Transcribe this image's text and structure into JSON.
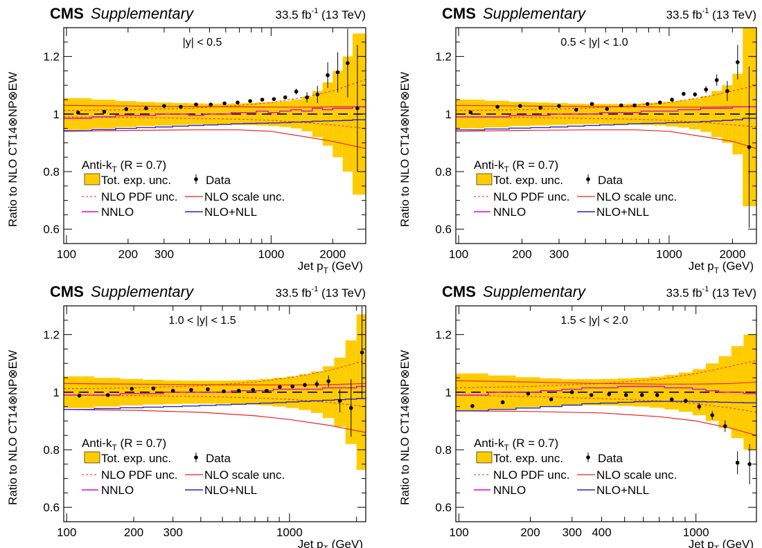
{
  "experiment": "CMS",
  "experiment_note": "Supplementary",
  "lumi_value": "33.5 fb",
  "lumi_exponent": "-1",
  "energy": "(13 TeV)",
  "y_axis_label": "Ratio to NLO CT14⊗NP⊗EW",
  "x_axis_label_main": "Jet p",
  "x_axis_label_sub": "T",
  "x_axis_unit": "(GeV)",
  "legend": {
    "title_main": "Anti-k",
    "title_sub": "T",
    "title_rest": " (R = 0.7)",
    "items": {
      "exp_unc": "Tot. exp. unc.",
      "data": "Data",
      "pdf_unc": "NLO PDF unc.",
      "scale_unc": "NLO scale unc.",
      "nnlo": "NNLO",
      "nlo_nll": "NLO+NLL"
    }
  },
  "colors": {
    "exp_band": "#ffcc00",
    "pdf": "#ee2222",
    "scale": "#ee2222",
    "nnlo": "#dd00dd",
    "nll": "#2222cc",
    "data": "#000000"
  },
  "chart_data": [
    {
      "type": "line",
      "region": "|y| < 0.5",
      "x_scale": "log",
      "xlim": [
        97,
        2900
      ],
      "ylim": [
        0.55,
        1.3
      ],
      "x_tick_labels": [
        "100",
        "200",
        "300",
        "1000",
        "2000"
      ],
      "y_tick_labels": [
        "0.6",
        "0.8",
        "1",
        "1.2"
      ],
      "data": {
        "x": [
          114,
          153,
          196,
          245,
          300,
          362,
          430,
          507,
          592,
          686,
          790,
          905,
          1032,
          1172,
          1327,
          1497,
          1684,
          1890,
          2116,
          2366,
          2640
        ],
        "y": [
          1.005,
          1.008,
          1.017,
          1.02,
          1.028,
          1.025,
          1.033,
          1.033,
          1.037,
          1.04,
          1.045,
          1.05,
          1.052,
          1.058,
          1.078,
          1.058,
          1.068,
          1.135,
          1.145,
          1.177,
          1.02
        ],
        "err": [
          0.002,
          0.002,
          0.002,
          0.002,
          0.002,
          0.002,
          0.002,
          0.002,
          0.002,
          0.002,
          0.003,
          0.004,
          0.005,
          0.006,
          0.01,
          0.018,
          0.03,
          0.045,
          0.07,
          0.12,
          0.22
        ]
      },
      "exp_unc": {
        "edges": [
          97,
          133,
          174,
          220,
          272,
          330,
          395,
          468,
          548,
          638,
          737,
          846,
          967,
          1101,
          1248,
          1410,
          1588,
          1784,
          2000,
          2238,
          2500,
          2900
        ],
        "half_width": [
          0.055,
          0.05,
          0.045,
          0.042,
          0.04,
          0.038,
          0.037,
          0.036,
          0.036,
          0.037,
          0.038,
          0.04,
          0.042,
          0.045,
          0.05,
          0.06,
          0.08,
          0.11,
          0.15,
          0.2,
          0.28
        ]
      },
      "pdf_unc": {
        "x": [
          97,
          200,
          400,
          700,
          1000,
          1500,
          2000,
          2900
        ],
        "up": [
          1.012,
          1.015,
          1.02,
          1.03,
          1.04,
          1.06,
          1.08,
          1.12
        ],
        "down": [
          0.99,
          0.988,
          0.985,
          0.982,
          0.978,
          0.97,
          0.962,
          0.95
        ]
      },
      "scale_unc": {
        "x": [
          97,
          200,
          400,
          700,
          1000,
          1500,
          2000,
          2900
        ],
        "up": [
          1.03,
          1.028,
          1.026,
          1.025,
          1.024,
          1.024,
          1.025,
          1.025
        ],
        "down": [
          0.94,
          0.943,
          0.945,
          0.945,
          0.94,
          0.92,
          0.905,
          0.88
        ]
      },
      "nnlo": [
        0.985,
        0.99,
        0.995,
        0.995,
        1.0,
        1.0,
        0.995,
        1.0,
        1.0,
        1.005,
        1.005,
        1.01,
        1.005,
        1.01,
        1.015,
        1.01,
        1.02,
        1.015,
        1.02,
        1.02,
        1.025
      ],
      "nlo_nll": [
        0.942,
        0.946,
        0.95,
        0.953,
        0.955,
        0.958,
        0.96,
        0.962,
        0.964,
        0.966,
        0.967,
        0.968,
        0.969,
        0.97,
        0.972,
        0.973,
        0.975,
        0.976,
        0.977,
        0.978,
        0.98
      ]
    },
    {
      "type": "line",
      "region": "0.5 < |y| < 1.0",
      "x_scale": "log",
      "xlim": [
        97,
        2600
      ],
      "ylim": [
        0.55,
        1.3
      ],
      "x_tick_labels": [
        "100",
        "200",
        "300",
        "1000",
        "2000"
      ],
      "y_tick_labels": [
        "0.6",
        "0.8",
        "1",
        "1.2"
      ],
      "data": {
        "x": [
          114,
          153,
          196,
          245,
          300,
          362,
          430,
          507,
          592,
          686,
          790,
          905,
          1032,
          1172,
          1327,
          1497,
          1684,
          1890,
          2116,
          2400
        ],
        "y": [
          1.006,
          1.025,
          1.028,
          1.022,
          1.028,
          1.015,
          1.035,
          1.018,
          1.03,
          1.03,
          1.035,
          1.04,
          1.05,
          1.07,
          1.068,
          1.085,
          1.118,
          1.08,
          1.18,
          0.885
        ],
        "err": [
          0.002,
          0.002,
          0.002,
          0.002,
          0.002,
          0.002,
          0.002,
          0.002,
          0.002,
          0.003,
          0.003,
          0.004,
          0.005,
          0.006,
          0.008,
          0.012,
          0.02,
          0.035,
          0.06,
          0.28
        ]
      },
      "exp_unc": {
        "edges": [
          97,
          133,
          174,
          220,
          272,
          330,
          395,
          468,
          548,
          638,
          737,
          846,
          967,
          1101,
          1248,
          1410,
          1588,
          1784,
          2000,
          2238,
          2600
        ],
        "half_width": [
          0.05,
          0.046,
          0.042,
          0.04,
          0.038,
          0.036,
          0.035,
          0.035,
          0.035,
          0.036,
          0.038,
          0.04,
          0.043,
          0.047,
          0.053,
          0.062,
          0.08,
          0.1,
          0.14,
          0.32
        ]
      },
      "pdf_unc": {
        "x": [
          97,
          200,
          400,
          700,
          1000,
          1500,
          2000,
          2600
        ],
        "up": [
          1.012,
          1.015,
          1.02,
          1.03,
          1.04,
          1.06,
          1.08,
          1.1
        ],
        "down": [
          0.99,
          0.988,
          0.985,
          0.982,
          0.978,
          0.97,
          0.962,
          0.955
        ]
      },
      "scale_unc": {
        "x": [
          97,
          200,
          400,
          700,
          1000,
          1500,
          2000,
          2600
        ],
        "up": [
          1.03,
          1.028,
          1.026,
          1.025,
          1.024,
          1.024,
          1.025,
          1.025
        ],
        "down": [
          0.94,
          0.943,
          0.945,
          0.945,
          0.94,
          0.92,
          0.905,
          0.88
        ]
      },
      "nnlo": [
        0.99,
        0.99,
        0.995,
        0.995,
        1.0,
        1.0,
        1.0,
        1.005,
        1.005,
        1.005,
        1.01,
        1.01,
        1.01,
        1.015,
        1.015,
        1.02,
        1.02,
        1.02,
        1.025,
        1.025
      ],
      "nlo_nll": [
        0.945,
        0.948,
        0.951,
        0.953,
        0.955,
        0.958,
        0.96,
        0.962,
        0.964,
        0.966,
        0.967,
        0.968,
        0.97,
        0.971,
        0.972,
        0.974,
        0.976,
        0.978,
        0.98,
        0.985
      ]
    },
    {
      "type": "line",
      "region": "1.0 < |y| < 1.5",
      "x_scale": "log",
      "xlim": [
        97,
        2200
      ],
      "ylim": [
        0.55,
        1.3
      ],
      "x_tick_labels": [
        "100",
        "200",
        "300",
        "1000"
      ],
      "y_tick_labels": [
        "0.6",
        "0.8",
        "1",
        "1.2"
      ],
      "data": {
        "x": [
          114,
          153,
          196,
          245,
          300,
          362,
          430,
          507,
          592,
          686,
          790,
          905,
          1032,
          1172,
          1327,
          1497,
          1684,
          1890,
          2116
        ],
        "y": [
          0.988,
          0.99,
          1.012,
          1.013,
          1.005,
          1.008,
          1.01,
          1.003,
          1.005,
          1.008,
          1.005,
          1.018,
          1.02,
          1.025,
          1.028,
          1.038,
          0.97,
          0.945,
          1.138
        ],
        "err": [
          0.002,
          0.002,
          0.002,
          0.002,
          0.002,
          0.002,
          0.002,
          0.002,
          0.003,
          0.003,
          0.004,
          0.005,
          0.006,
          0.008,
          0.012,
          0.02,
          0.04,
          0.1,
          0.16
        ]
      },
      "exp_unc": {
        "edges": [
          97,
          133,
          174,
          220,
          272,
          330,
          395,
          468,
          548,
          638,
          737,
          846,
          967,
          1101,
          1248,
          1410,
          1588,
          1784,
          2000,
          2200
        ],
        "half_width": [
          0.055,
          0.05,
          0.046,
          0.043,
          0.041,
          0.04,
          0.04,
          0.04,
          0.041,
          0.043,
          0.046,
          0.05,
          0.055,
          0.062,
          0.072,
          0.09,
          0.12,
          0.18,
          0.27
        ]
      },
      "pdf_unc": {
        "x": [
          97,
          200,
          400,
          700,
          1000,
          1500,
          2200
        ],
        "up": [
          1.012,
          1.015,
          1.022,
          1.035,
          1.05,
          1.075,
          1.11
        ],
        "down": [
          0.99,
          0.988,
          0.985,
          0.98,
          0.975,
          0.965,
          0.95
        ]
      },
      "scale_unc": {
        "x": [
          97,
          200,
          400,
          700,
          1000,
          1500,
          2200
        ],
        "up": [
          1.03,
          1.028,
          1.026,
          1.025,
          1.025,
          1.026,
          1.03
        ],
        "down": [
          0.94,
          0.937,
          0.93,
          0.918,
          0.905,
          0.885,
          0.86
        ]
      },
      "nnlo": [
        0.99,
        0.99,
        0.995,
        0.995,
        1.0,
        1.0,
        1.0,
        1.0,
        1.005,
        1.005,
        1.005,
        1.01,
        1.01,
        1.01,
        1.01,
        1.015,
        1.015,
        1.015,
        1.02
      ],
      "nlo_nll": [
        0.94,
        0.943,
        0.946,
        0.948,
        0.95,
        0.952,
        0.954,
        0.956,
        0.958,
        0.96,
        0.962,
        0.964,
        0.966,
        0.968,
        0.97,
        0.972,
        0.974,
        0.976,
        0.978
      ]
    },
    {
      "type": "line",
      "region": "1.5 < |y| < 2.0",
      "x_scale": "log",
      "xlim": [
        97,
        1800
      ],
      "ylim": [
        0.55,
        1.3
      ],
      "x_tick_labels": [
        "100",
        "200",
        "300",
        "400",
        "1000"
      ],
      "y_tick_labels": [
        "0.6",
        "0.8",
        "1",
        "1.2"
      ],
      "data": {
        "x": [
          114,
          153,
          196,
          245,
          300,
          362,
          430,
          507,
          592,
          686,
          790,
          905,
          1032,
          1172,
          1327,
          1497,
          1684
        ],
        "y": [
          0.952,
          0.965,
          0.995,
          0.975,
          1.0,
          0.99,
          0.993,
          0.99,
          0.99,
          0.99,
          0.975,
          0.97,
          0.95,
          0.92,
          0.882,
          0.755,
          0.75
        ],
        "err": [
          0.002,
          0.002,
          0.002,
          0.002,
          0.002,
          0.002,
          0.003,
          0.003,
          0.004,
          0.005,
          0.006,
          0.008,
          0.012,
          0.015,
          0.02,
          0.04,
          0.07
        ]
      },
      "exp_unc": {
        "edges": [
          97,
          133,
          174,
          220,
          272,
          330,
          395,
          468,
          548,
          638,
          737,
          846,
          967,
          1101,
          1248,
          1410,
          1588,
          1800
        ],
        "half_width": [
          0.065,
          0.058,
          0.052,
          0.048,
          0.045,
          0.045,
          0.046,
          0.048,
          0.05,
          0.054,
          0.06,
          0.068,
          0.08,
          0.1,
          0.125,
          0.16,
          0.2
        ]
      },
      "pdf_unc": {
        "x": [
          97,
          200,
          400,
          700,
          1000,
          1400,
          1800
        ],
        "up": [
          1.015,
          1.02,
          1.03,
          1.045,
          1.065,
          1.09,
          1.11
        ],
        "down": [
          0.99,
          0.985,
          0.978,
          0.97,
          0.96,
          0.945,
          0.93
        ]
      },
      "scale_unc": {
        "x": [
          97,
          200,
          400,
          700,
          1000,
          1400,
          1800
        ],
        "up": [
          1.04,
          1.035,
          1.03,
          1.028,
          1.028,
          1.03,
          1.035
        ],
        "down": [
          0.935,
          0.933,
          0.928,
          0.915,
          0.9,
          0.875,
          0.85
        ]
      },
      "nnlo": [
        0.99,
        1.0,
        1.0,
        1.005,
        1.01,
        1.015,
        1.015,
        1.02,
        1.02,
        1.02,
        1.015,
        1.015,
        1.01,
        1.005,
        1.0,
        1.0,
        0.995
      ],
      "nlo_nll": [
        0.935,
        0.94,
        0.945,
        0.95,
        0.955,
        0.96,
        0.962,
        0.965,
        0.967,
        0.968,
        0.968,
        0.968,
        0.967,
        0.966,
        0.965,
        0.964,
        0.963
      ]
    }
  ]
}
